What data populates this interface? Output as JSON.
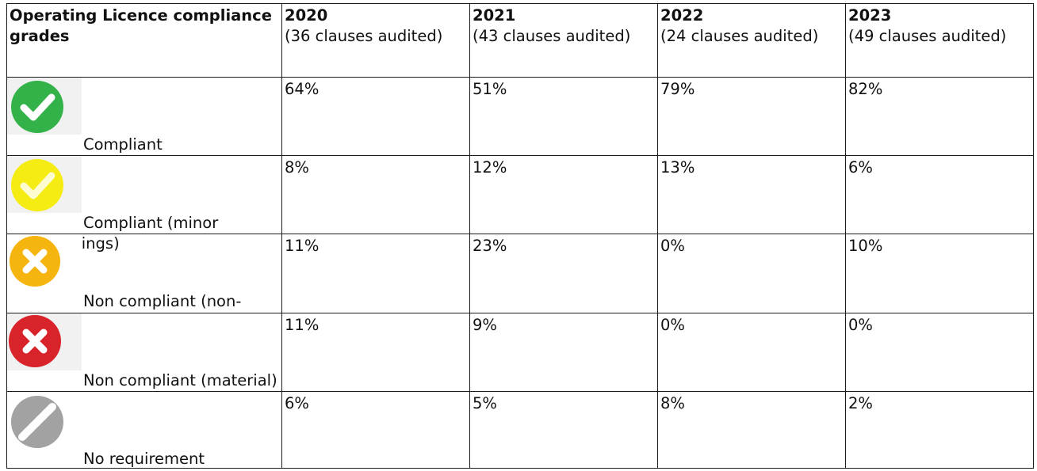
{
  "table": {
    "header_title": "Operating Licence compliance grades",
    "years": [
      {
        "year": "2020",
        "sub": "(36 clauses audited)"
      },
      {
        "year": "2021",
        "sub": "(43 clauses audited)"
      },
      {
        "year": "2022",
        "sub": "(24 clauses audited)"
      },
      {
        "year": "2023",
        "sub": "(49 clauses audited)"
      }
    ],
    "rows": [
      {
        "label": "Compliant",
        "icon": "green-check-icon",
        "color": "#34b24a",
        "values": [
          "64%",
          "51%",
          "79%",
          "82%"
        ]
      },
      {
        "label": "Compliant (minor shortcomings)",
        "icon": "yellow-check-icon",
        "color": "#f5ec14",
        "values": [
          "8%",
          "12%",
          "13%",
          "6%"
        ]
      },
      {
        "label": "Non compliant (non-material)",
        "icon": "amber-cross-icon",
        "color": "#f6b40f",
        "values": [
          "11%",
          "23%",
          "0%",
          "10%"
        ]
      },
      {
        "label": "Non compliant (material)",
        "icon": "red-cross-icon",
        "color": "#d8232a",
        "values": [
          "11%",
          "9%",
          "0%",
          "0%"
        ]
      },
      {
        "label": "No requirement",
        "icon": "grey-slash-icon",
        "color": "#a2a2a2",
        "values": [
          "6%",
          "5%",
          "8%",
          "2%"
        ]
      }
    ]
  }
}
